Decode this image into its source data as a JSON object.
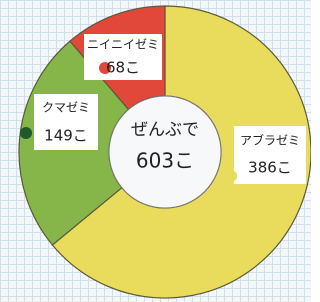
{
  "chart_data": {
    "type": "donut",
    "categories": [
      "アブラゼミ",
      "クマゼミ",
      "ニイニイゼミ"
    ],
    "values": [
      386,
      149,
      68
    ],
    "value_labels": [
      "386こ",
      "149こ",
      "68こ"
    ],
    "colors": [
      "#e9dc5c",
      "#86b64a",
      "#e2483a"
    ],
    "center_text": [
      "ぜんぶで",
      "603こ"
    ]
  }
}
